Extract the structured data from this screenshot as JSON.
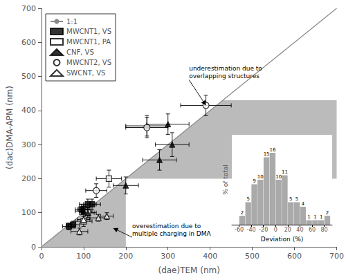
{
  "chart_data": [
    {
      "type": "scatter",
      "xlabel": "(dae)TEM (nm)",
      "ylabel": "(dac)DMA-APM (nm)",
      "xlim": [
        0,
        700
      ],
      "ylim": [
        0,
        700
      ],
      "xticks": [
        0,
        100,
        200,
        300,
        400,
        500,
        600,
        700
      ],
      "yticks": [
        0,
        100,
        200,
        300,
        400,
        500,
        600,
        700
      ],
      "grid": false,
      "legend": "upper left",
      "series": [
        {
          "name": "1:1",
          "type": "line",
          "color": "#888888",
          "x": [
            0,
            700
          ],
          "y": [
            0,
            700
          ]
        },
        {
          "name": "MWCNT1, VS",
          "marker": "square",
          "color": "black",
          "x": [
            65,
            75,
            95,
            100,
            110,
            120
          ],
          "y": [
            60,
            65,
            110,
            110,
            125,
            125
          ],
          "xerr": [
            15,
            15,
            15,
            15,
            20,
            20
          ],
          "yerr": [
            10,
            10,
            15,
            15,
            15,
            15
          ]
        },
        {
          "name": "MWCNT1, PA",
          "marker": "open_square",
          "color": "black",
          "x": [
            100,
            110,
            160
          ],
          "y": [
            75,
            100,
            200
          ],
          "xerr": [
            20,
            20,
            30
          ],
          "yerr": [
            15,
            15,
            25
          ]
        },
        {
          "name": "CNF, VS",
          "marker": "triangle",
          "color": "black",
          "x": [
            100,
            110,
            200,
            280,
            310,
            250,
            300
          ],
          "y": [
            105,
            100,
            180,
            255,
            300,
            355,
            360
          ],
          "xerr": [
            20,
            15,
            30,
            40,
            40,
            50,
            50
          ],
          "yerr": [
            15,
            15,
            25,
            30,
            35,
            30,
            30
          ]
        },
        {
          "name": "MWCNT2, VS",
          "marker": "open_circle",
          "color": "black",
          "x": [
            130,
            250,
            390
          ],
          "y": [
            165,
            350,
            415
          ],
          "xerr": [
            25,
            50,
            60
          ],
          "yerr": [
            20,
            30,
            30
          ]
        },
        {
          "name": "SWCNT, VS",
          "marker": "open_triangle",
          "color": "black",
          "x": [
            90,
            100,
            135,
            155
          ],
          "y": [
            45,
            80,
            85,
            90
          ],
          "xerr": [
            20,
            15,
            20,
            15
          ],
          "yerr": [
            10,
            10,
            10,
            10
          ]
        }
      ],
      "shaded_regions": [
        {
          "color": "#bbbbbb",
          "x": [
            0,
            200,
            200
          ],
          "y": [
            0,
            0,
            200
          ]
        },
        {
          "color": "#bbbbbb",
          "x": [
            200,
            430,
            700,
            700
          ],
          "y": [
            200,
            430,
            430,
            200
          ]
        }
      ],
      "annotations": [
        {
          "text": "underestimation due to\noverlapping structures",
          "xy": [
            390,
            415
          ],
          "xytext": [
            350,
            490
          ]
        },
        {
          "text": "overestimation due to\nmultiple charging in DMA",
          "xy": [
            170,
            55
          ],
          "xytext": [
            215,
            28
          ]
        }
      ]
    },
    {
      "type": "bar",
      "xlabel": "Deviation (%)",
      "ylabel": "% of total",
      "bin_centers": [
        -65,
        -55,
        -45,
        -35,
        -25,
        -15,
        -5,
        5,
        15,
        25,
        35,
        45,
        55,
        65,
        75,
        85
      ],
      "values": [
        0,
        2,
        5,
        9,
        10,
        15,
        16,
        10,
        11,
        5,
        5,
        4,
        1,
        1,
        1,
        2
      ],
      "color": "#aaaaaa",
      "xlim": [
        -72,
        93
      ],
      "xticks": [
        -60,
        -40,
        -20,
        0,
        20,
        40,
        60,
        80
      ],
      "ylim": [
        0,
        20
      ],
      "tick_labels": "x",
      "data_labels": true,
      "grid": false
    }
  ]
}
